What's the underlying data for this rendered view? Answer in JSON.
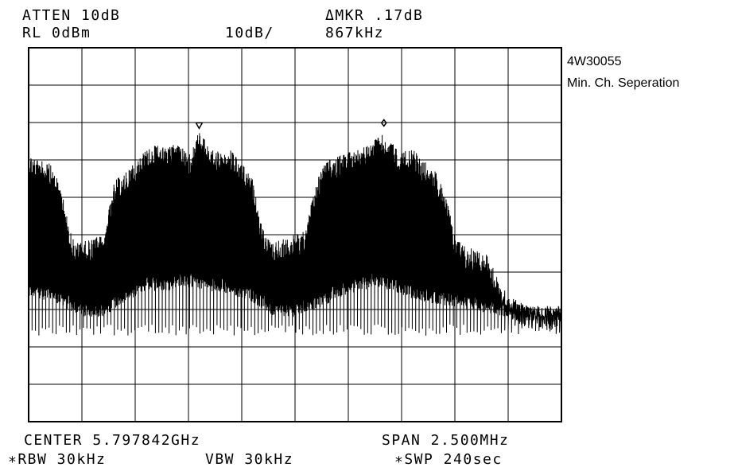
{
  "header": {
    "atten": "ATTEN 10dB",
    "ref_level": "RL 0dBm",
    "scale": "10dB/",
    "delta_marker": "ΔMKR .17dB",
    "delta_freq": "867kHz"
  },
  "annotations": {
    "line1": "4W30055",
    "line2": "Min. Ch. Seperation"
  },
  "footer": {
    "center": "CENTER 5.797842GHz",
    "span": "SPAN 2.500MHz",
    "rbw": "∗RBW 30kHz",
    "vbw": "VBW 30kHz",
    "sweep": "∗SWP 240sec"
  },
  "chart_data": {
    "type": "line",
    "xlabel": "",
    "ylabel": "",
    "x_unit": "MHz",
    "y_unit": "dBm",
    "center_ghz": 5.797842,
    "span_mhz": 2.5,
    "xlim": [
      -1.25,
      1.25
    ],
    "ylim": [
      -100,
      0
    ],
    "grid": true,
    "grid_divisions": [
      10,
      10
    ],
    "markers": [
      {
        "type": "reference",
        "x_mhz": -0.45,
        "y_dbm": -22
      },
      {
        "type": "delta",
        "x_mhz": 0.417,
        "y_dbm": -21.8
      }
    ],
    "series": [
      {
        "envelope_upper": [
          [
            -1.25,
            -28
          ],
          [
            -1.2,
            -30
          ],
          [
            -1.15,
            -31
          ],
          [
            -1.1,
            -37
          ],
          [
            -1.06,
            -48
          ],
          [
            -1.03,
            -52
          ],
          [
            -1.0,
            -52
          ],
          [
            -0.95,
            -51
          ],
          [
            -0.9,
            -50
          ],
          [
            -0.85,
            -36
          ],
          [
            -0.8,
            -33
          ],
          [
            -0.75,
            -30
          ],
          [
            -0.7,
            -27
          ],
          [
            -0.65,
            -26
          ],
          [
            -0.6,
            -27
          ],
          [
            -0.55,
            -25
          ],
          [
            -0.5,
            -29
          ],
          [
            -0.45,
            -22
          ],
          [
            -0.4,
            -27
          ],
          [
            -0.35,
            -28
          ],
          [
            -0.3,
            -27
          ],
          [
            -0.25,
            -31
          ],
          [
            -0.2,
            -35
          ],
          [
            -0.17,
            -44
          ],
          [
            -0.14,
            -50
          ],
          [
            -0.1,
            -52
          ],
          [
            -0.05,
            -51
          ],
          [
            0.0,
            -50
          ],
          [
            0.05,
            -49
          ],
          [
            0.1,
            -35
          ],
          [
            0.15,
            -30
          ],
          [
            0.2,
            -29
          ],
          [
            0.25,
            -28
          ],
          [
            0.3,
            -27
          ],
          [
            0.35,
            -26
          ],
          [
            0.4,
            -23
          ],
          [
            0.45,
            -25
          ],
          [
            0.5,
            -28
          ],
          [
            0.55,
            -27
          ],
          [
            0.6,
            -30
          ],
          [
            0.65,
            -32
          ],
          [
            0.7,
            -38
          ],
          [
            0.75,
            -50
          ],
          [
            0.8,
            -53
          ],
          [
            0.85,
            -54
          ],
          [
            0.9,
            -55
          ],
          [
            0.95,
            -61
          ],
          [
            1.0,
            -66
          ],
          [
            1.05,
            -68
          ],
          [
            1.1,
            -69
          ],
          [
            1.15,
            -69
          ],
          [
            1.2,
            -70
          ],
          [
            1.25,
            -70
          ]
        ],
        "envelope_lower": [
          [
            -1.25,
            -65
          ],
          [
            -1.2,
            -65
          ],
          [
            -1.1,
            -67
          ],
          [
            -1.0,
            -70
          ],
          [
            -0.9,
            -70
          ],
          [
            -0.8,
            -66
          ],
          [
            -0.7,
            -63
          ],
          [
            -0.6,
            -63
          ],
          [
            -0.5,
            -62
          ],
          [
            -0.4,
            -63
          ],
          [
            -0.3,
            -64
          ],
          [
            -0.2,
            -66
          ],
          [
            -0.1,
            -70
          ],
          [
            0.0,
            -70
          ],
          [
            0.1,
            -68
          ],
          [
            0.2,
            -65
          ],
          [
            0.3,
            -63
          ],
          [
            0.4,
            -62
          ],
          [
            0.5,
            -64
          ],
          [
            0.6,
            -66
          ],
          [
            0.7,
            -67
          ],
          [
            0.8,
            -68
          ],
          [
            0.9,
            -69
          ],
          [
            1.0,
            -70
          ],
          [
            1.1,
            -71
          ],
          [
            1.25,
            -71
          ]
        ],
        "noise_floor_dbm": -77
      }
    ]
  }
}
